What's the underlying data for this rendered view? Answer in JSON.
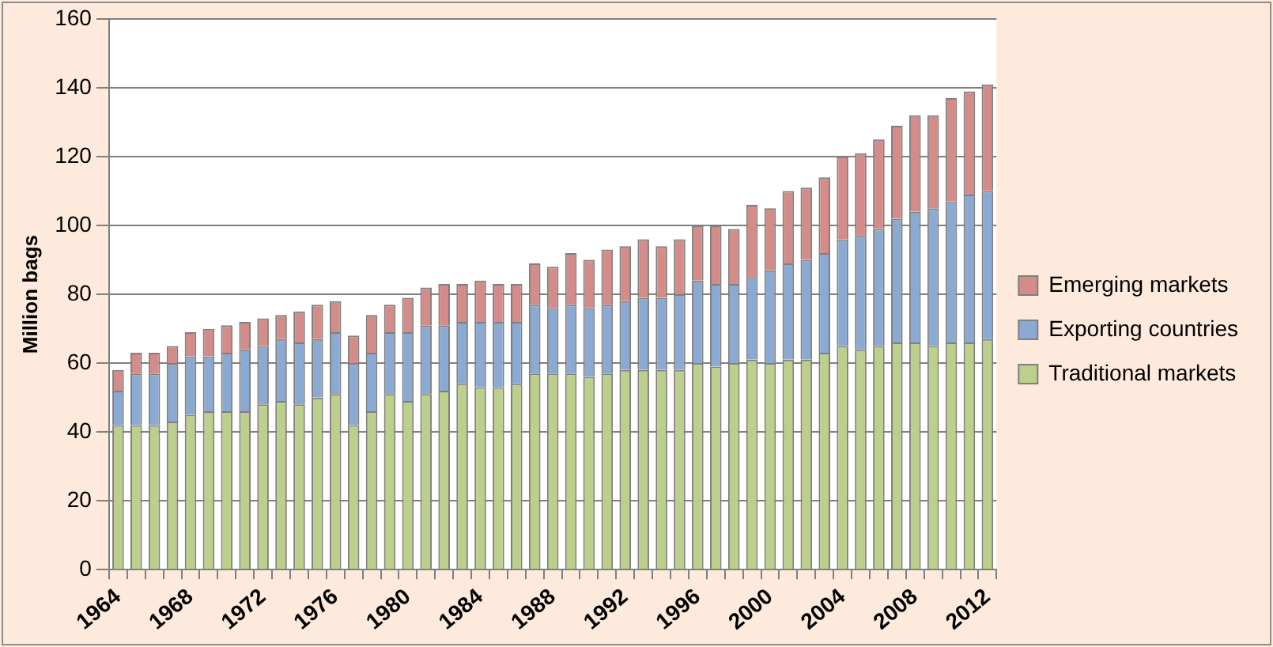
{
  "chart_data": {
    "type": "bar",
    "ylabel": "Million bags",
    "stacked": true,
    "grid": "y",
    "legend": "right",
    "categories": [
      "1964",
      null,
      null,
      null,
      "1968",
      null,
      null,
      null,
      "1972",
      null,
      null,
      null,
      "1976",
      null,
      null,
      null,
      "1980",
      null,
      null,
      null,
      "1984",
      null,
      null,
      null,
      "1988",
      null,
      null,
      null,
      "1992",
      null,
      null,
      null,
      "1996",
      null,
      null,
      null,
      "2000",
      null,
      null,
      null,
      "2004",
      null,
      null,
      null,
      "2008",
      null,
      null,
      null,
      "2012"
    ],
    "ylim": [
      0,
      160
    ],
    "yticks": [
      0,
      20,
      40,
      60,
      80,
      100,
      120,
      140,
      160
    ],
    "series": [
      {
        "name": "Traditional markets",
        "color": "#bccf8b",
        "values": [
          42,
          42,
          42,
          43,
          45,
          46,
          46,
          46,
          48,
          49,
          48,
          50,
          51,
          42,
          46,
          51,
          49,
          51,
          52,
          54,
          53,
          53,
          54,
          57,
          57,
          57,
          56,
          57,
          58,
          58,
          58,
          58,
          60,
          59,
          60,
          61,
          60,
          61,
          61,
          63,
          65,
          64,
          65,
          66,
          66,
          65,
          66,
          66,
          67
        ]
      },
      {
        "name": "Exporting countries",
        "color": "#8aa9d3",
        "values": [
          10,
          15,
          15,
          17,
          17,
          16,
          17,
          18,
          17,
          18,
          18,
          17,
          18,
          18,
          17,
          18,
          20,
          20,
          19,
          18,
          19,
          19,
          18,
          20,
          19,
          20,
          20,
          20,
          20,
          21,
          21,
          22,
          24,
          24,
          23,
          24,
          27,
          28,
          29,
          29,
          31,
          33,
          34,
          36,
          38,
          40,
          41,
          43,
          43
        ]
      },
      {
        "name": "Emerging markets",
        "color": "#d58b88",
        "values": [
          6,
          6,
          6,
          5,
          7,
          8,
          8,
          8,
          8,
          7,
          9,
          10,
          9,
          8,
          11,
          8,
          10,
          11,
          12,
          11,
          12,
          11,
          11,
          12,
          12,
          15,
          14,
          16,
          16,
          17,
          15,
          16,
          16,
          17,
          16,
          21,
          18,
          21,
          21,
          22,
          24,
          24,
          26,
          27,
          28,
          27,
          30,
          30,
          31
        ]
      }
    ]
  }
}
